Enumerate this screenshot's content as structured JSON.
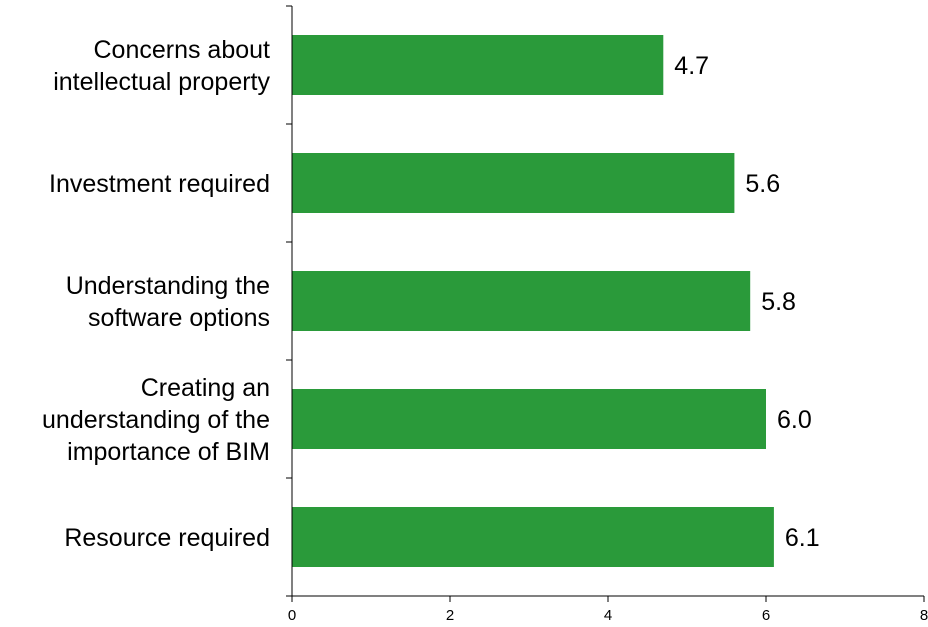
{
  "chart_data": {
    "type": "bar",
    "orientation": "horizontal",
    "categories": [
      [
        "Concerns about",
        "intellectual property"
      ],
      [
        "Investment required"
      ],
      [
        "Understanding the",
        "software options"
      ],
      [
        "Creating an",
        "understanding of the",
        "importance of BIM"
      ],
      [
        "Resource required"
      ]
    ],
    "values": [
      4.7,
      5.6,
      5.8,
      6.0,
      6.1
    ],
    "value_labels": [
      "4.7",
      "5.6",
      "5.8",
      "6.0",
      "6.1"
    ],
    "xlim": [
      0,
      8
    ],
    "xticks": [
      "0",
      "2",
      "4",
      "6",
      "8"
    ],
    "grid": false,
    "bar_color": "#2a9a3a",
    "title": "",
    "xlabel": "",
    "ylabel": ""
  }
}
